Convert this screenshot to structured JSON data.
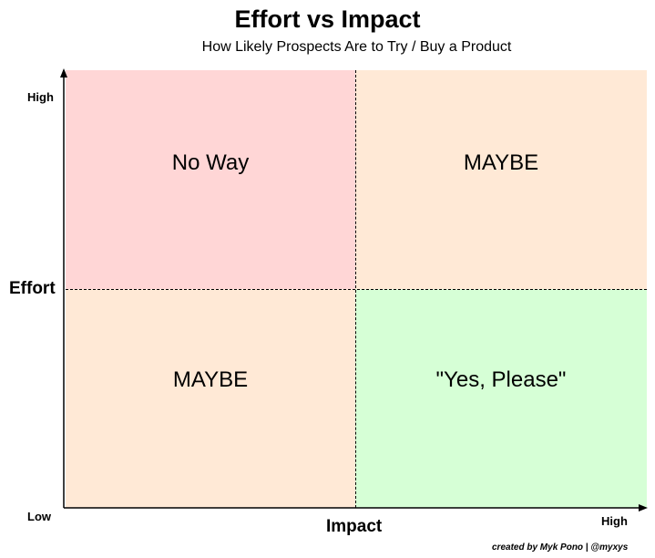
{
  "title": "Effort vs Impact",
  "subtitle": "How Likely Prospects Are to Try / Buy a Product",
  "colors": {
    "no_way": "#ffd6d6",
    "maybe": "#ffe9d6",
    "yes": "#d6ffd6"
  },
  "quadrants": {
    "top_left": "No Way",
    "top_right": "MAYBE",
    "bottom_left": "MAYBE",
    "bottom_right": "\"Yes, Please\""
  },
  "axes": {
    "y_title": "Effort",
    "y_high": "High",
    "y_low": "Low",
    "x_title": "Impact",
    "x_high": "High"
  },
  "credit": "created by Myk Pono | @myxys"
}
